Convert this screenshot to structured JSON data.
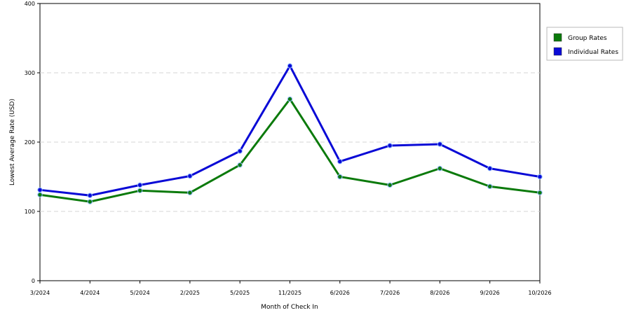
{
  "chart_data": {
    "type": "line",
    "title": "",
    "xlabel": "Month of Check In",
    "ylabel": "Lowest Average Rate (USD)",
    "categories": [
      "3/2024",
      "4/2024",
      "5/2024",
      "2/2025",
      "5/2025",
      "11/2025",
      "6/2026",
      "7/2026",
      "8/2026",
      "9/2026",
      "10/2026"
    ],
    "ylim": [
      0,
      400
    ],
    "yticks": [
      0,
      100,
      200,
      300,
      400
    ],
    "grid": true,
    "legend_position": "right",
    "series": [
      {
        "name": "Group Rates",
        "color": "#0b7a0b",
        "values": [
          124,
          114,
          130,
          127,
          167,
          262,
          150,
          138,
          162,
          136,
          127
        ]
      },
      {
        "name": "Individual Rates",
        "color": "#0a0ad6",
        "values": [
          131,
          123,
          138,
          151,
          187,
          310,
          172,
          195,
          197,
          162,
          150
        ]
      }
    ]
  }
}
